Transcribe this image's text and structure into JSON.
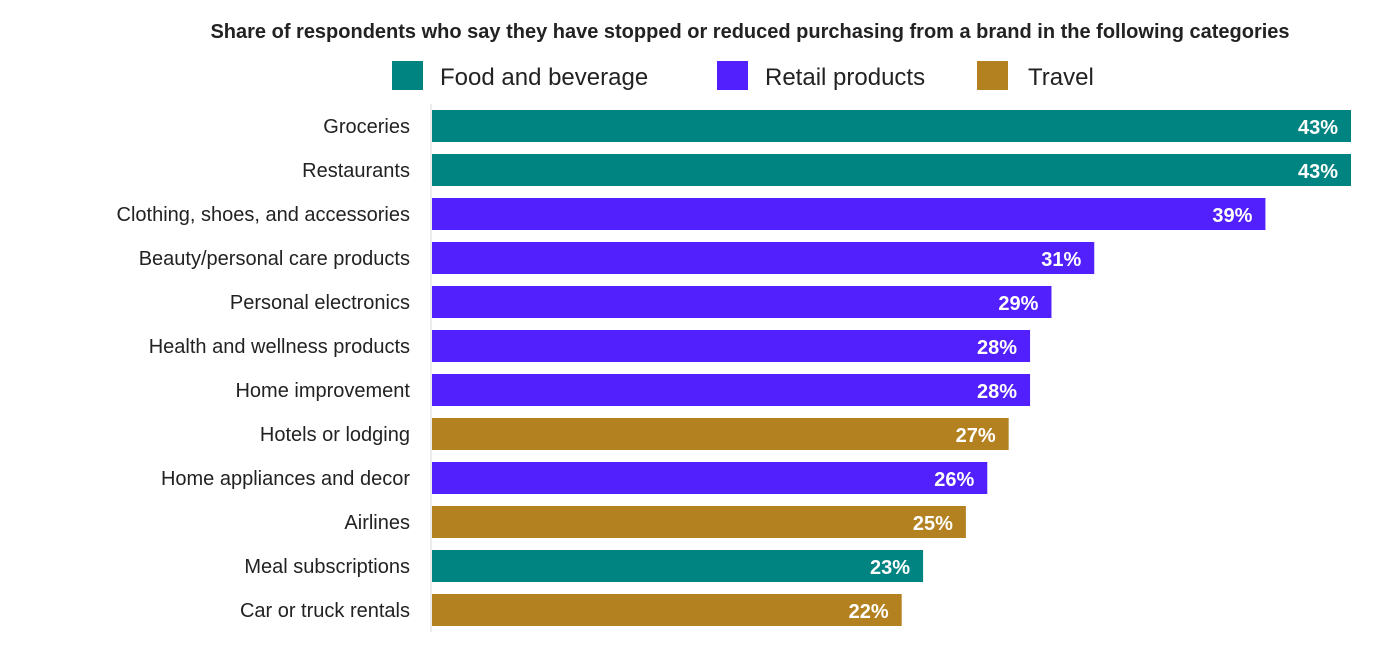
{
  "chart_data": {
    "type": "bar",
    "orientation": "horizontal",
    "title": "Share of respondents who say they have stopped or reduced purchasing from a brand in the following categories",
    "legend_placement": "top",
    "grid": false,
    "xlim": [
      0,
      43
    ],
    "legend": [
      {
        "name": "Food and beverage",
        "color": "#008482"
      },
      {
        "name": "Retail products",
        "color": "#5120FC"
      },
      {
        "name": "Travel",
        "color": "#B38120"
      }
    ],
    "categories": [
      "Groceries",
      "Restaurants",
      "Clothing, shoes, and accessories",
      "Beauty/personal care products",
      "Personal electronics",
      "Health and wellness products",
      "Home improvement",
      "Hotels or lodging",
      "Home appliances and decor",
      "Airlines",
      "Meal subscriptions",
      "Car or truck rentals"
    ],
    "values": [
      43,
      43,
      39,
      31,
      29,
      28,
      28,
      27,
      26,
      25,
      23,
      22
    ],
    "data_labels": [
      "43%",
      "43%",
      "39%",
      "31%",
      "29%",
      "28%",
      "28%",
      "27%",
      "26%",
      "25%",
      "23%",
      "22%"
    ],
    "groups": [
      "Food and beverage",
      "Food and beverage",
      "Retail products",
      "Retail products",
      "Retail products",
      "Retail products",
      "Retail products",
      "Travel",
      "Retail products",
      "Travel",
      "Food and beverage",
      "Travel"
    ]
  }
}
